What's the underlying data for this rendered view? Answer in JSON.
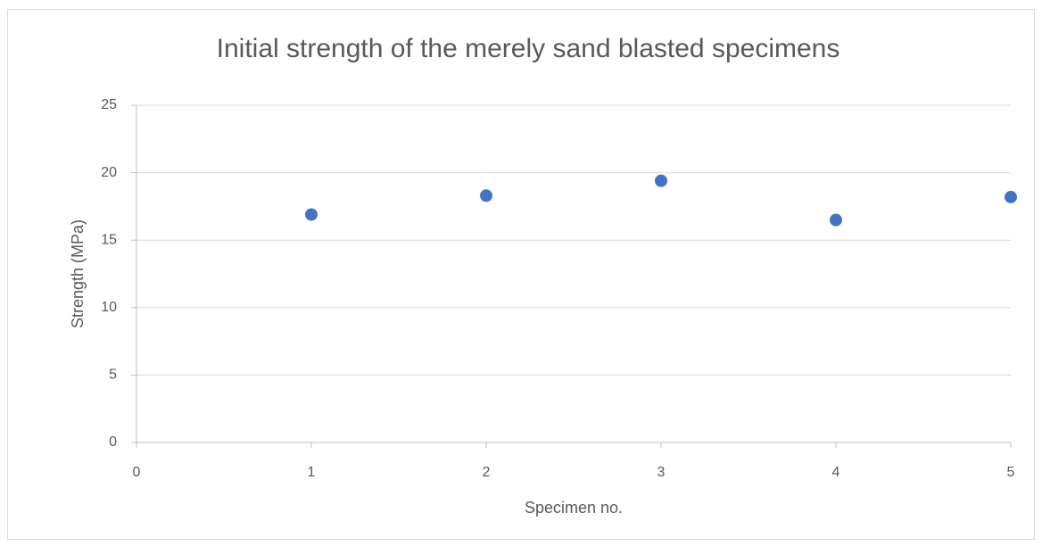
{
  "chart_data": {
    "type": "scatter",
    "title": "Initial strength of the merely sand blasted specimens",
    "x_label": "Specimen no.",
    "y_label": "Strength (MPa)",
    "x": [
      1,
      2,
      3,
      4,
      5
    ],
    "series": [
      {
        "name": "Strength",
        "color": "#4472c4",
        "values": [
          16.9,
          18.3,
          19.4,
          16.5,
          18.2
        ]
      }
    ],
    "xlim": [
      0,
      5
    ],
    "xticks": [
      0,
      1,
      2,
      3,
      4,
      5
    ],
    "ylim": [
      0,
      25
    ],
    "yticks": [
      0,
      5,
      10,
      15,
      20,
      25
    ],
    "grid": true
  }
}
